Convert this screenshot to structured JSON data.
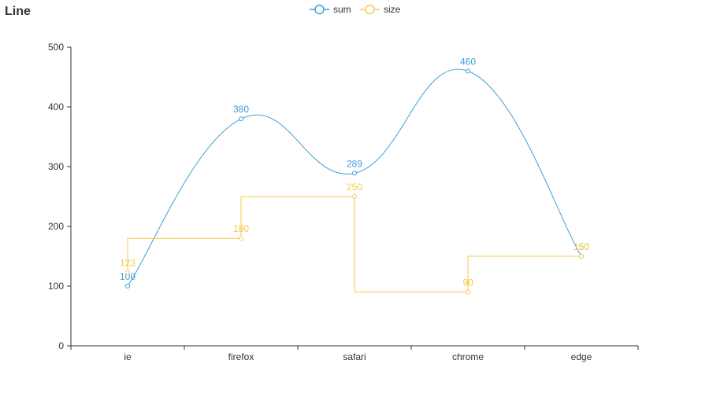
{
  "chart_data": {
    "type": "line",
    "title": "Line",
    "categories": [
      "ie",
      "firefox",
      "safari",
      "chrome",
      "edge"
    ],
    "ylim": [
      0,
      500
    ],
    "yticks": [
      0,
      100,
      200,
      300,
      400,
      500
    ],
    "grid": false,
    "legend_position": "top-center",
    "series": [
      {
        "name": "sum",
        "values": [
          100,
          380,
          289,
          460,
          150
        ],
        "color": "#3ba0d8",
        "line_style": "smooth"
      },
      {
        "name": "size",
        "values": [
          123,
          180,
          250,
          90,
          150
        ],
        "color": "#f7c948",
        "line_style": "step"
      }
    ]
  }
}
